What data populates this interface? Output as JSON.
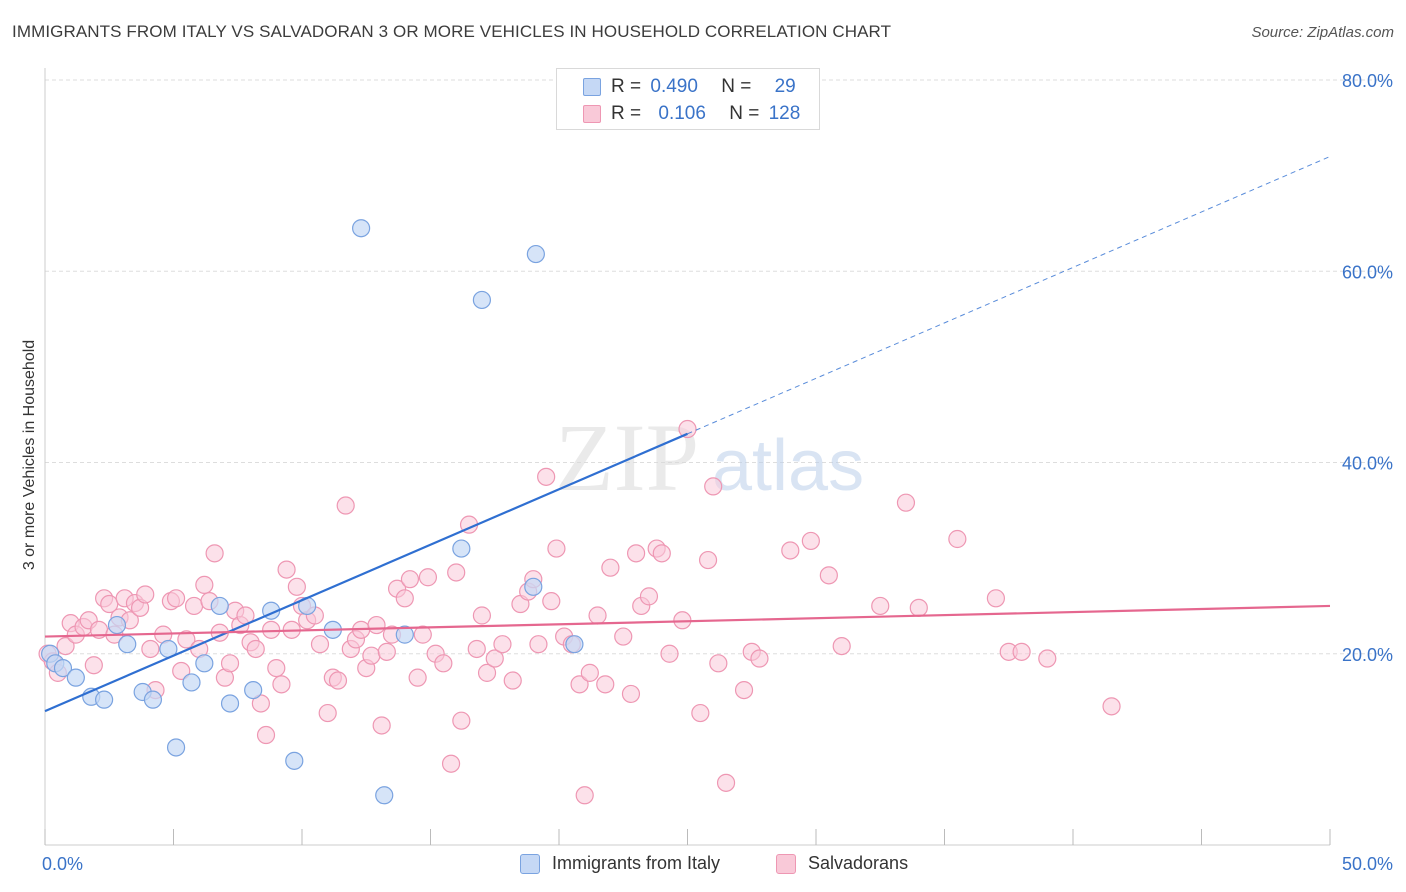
{
  "title": "IMMIGRANTS FROM ITALY VS SALVADORAN 3 OR MORE VEHICLES IN HOUSEHOLD CORRELATION CHART",
  "source": "Source: ZipAtlas.com",
  "watermark": {
    "zip": "ZIP",
    "atlas": "atlas"
  },
  "stats": [
    {
      "r_label": "R =",
      "r_value": "0.490",
      "n_label": "N =",
      "n_value": "29"
    },
    {
      "r_label": "R =",
      "r_value": "0.106",
      "n_label": "N =",
      "n_value": "128"
    }
  ],
  "colors": {
    "italy_fill": "#c5d8f5",
    "italy_stroke": "#7aa3e0",
    "italy_line": "#2f6fd1",
    "salv_fill": "#f9c9d8",
    "salv_stroke": "#ee97b3",
    "salv_line": "#e5678f",
    "axis_label": "#3a73c8",
    "grid": "#dddddd"
  },
  "chart_data": {
    "type": "scatter",
    "title": "IMMIGRANTS FROM ITALY VS SALVADORAN 3 OR MORE VEHICLES IN HOUSEHOLD CORRELATION CHART",
    "xlabel": "",
    "ylabel": "3 or more Vehicles in Household",
    "xlim": [
      0,
      50
    ],
    "ylim": [
      0,
      80
    ],
    "x_tick_labels": [
      "0.0%",
      "50.0%"
    ],
    "y_ticks": [
      20,
      40,
      60,
      80
    ],
    "y_tick_labels": [
      "20.0%",
      "40.0%",
      "60.0%",
      "80.0%"
    ],
    "grid": true,
    "legend_position": "bottom",
    "series": [
      {
        "name": "Immigrants from Italy",
        "trend": {
          "x": [
            0,
            25
          ],
          "y": [
            14.0,
            43.0
          ],
          "dashed_to": [
            50,
            72.0
          ]
        },
        "points": [
          [
            0.2,
            20.0
          ],
          [
            0.4,
            19.0
          ],
          [
            0.7,
            18.5
          ],
          [
            1.2,
            17.5
          ],
          [
            1.8,
            15.5
          ],
          [
            2.3,
            15.2
          ],
          [
            2.8,
            23.0
          ],
          [
            3.2,
            21.0
          ],
          [
            3.8,
            16.0
          ],
          [
            4.2,
            15.2
          ],
          [
            4.8,
            20.5
          ],
          [
            5.1,
            10.2
          ],
          [
            5.7,
            17.0
          ],
          [
            6.2,
            19.0
          ],
          [
            6.8,
            25.0
          ],
          [
            7.2,
            14.8
          ],
          [
            8.1,
            16.2
          ],
          [
            8.8,
            24.5
          ],
          [
            9.7,
            8.8
          ],
          [
            10.2,
            25.0
          ],
          [
            11.2,
            22.5
          ],
          [
            12.3,
            64.5
          ],
          [
            13.2,
            5.2
          ],
          [
            14.0,
            22.0
          ],
          [
            16.2,
            31.0
          ],
          [
            17.0,
            57.0
          ],
          [
            19.0,
            27.0
          ],
          [
            19.1,
            61.8
          ],
          [
            20.6,
            21.0
          ]
        ]
      },
      {
        "name": "Salvadorans",
        "trend": {
          "x": [
            0,
            50
          ],
          "y": [
            21.8,
            25.0
          ]
        },
        "points": [
          [
            0.1,
            20.0
          ],
          [
            0.3,
            19.2
          ],
          [
            0.5,
            18.0
          ],
          [
            0.8,
            20.8
          ],
          [
            1.0,
            23.2
          ],
          [
            1.2,
            22.0
          ],
          [
            1.5,
            22.8
          ],
          [
            1.7,
            23.5
          ],
          [
            1.9,
            18.8
          ],
          [
            2.1,
            22.5
          ],
          [
            2.3,
            25.8
          ],
          [
            2.5,
            25.2
          ],
          [
            2.7,
            22.0
          ],
          [
            2.9,
            23.8
          ],
          [
            3.1,
            25.8
          ],
          [
            3.3,
            23.5
          ],
          [
            3.5,
            25.3
          ],
          [
            3.7,
            24.8
          ],
          [
            3.9,
            26.2
          ],
          [
            4.1,
            20.5
          ],
          [
            4.3,
            16.2
          ],
          [
            4.6,
            22.0
          ],
          [
            4.9,
            25.5
          ],
          [
            5.1,
            25.8
          ],
          [
            5.3,
            18.2
          ],
          [
            5.5,
            21.5
          ],
          [
            5.8,
            25.0
          ],
          [
            6.0,
            20.5
          ],
          [
            6.2,
            27.2
          ],
          [
            6.4,
            25.5
          ],
          [
            6.6,
            30.5
          ],
          [
            6.8,
            22.2
          ],
          [
            7.0,
            17.5
          ],
          [
            7.2,
            19.0
          ],
          [
            7.4,
            24.5
          ],
          [
            7.6,
            23.0
          ],
          [
            7.8,
            24.0
          ],
          [
            8.0,
            21.2
          ],
          [
            8.2,
            20.5
          ],
          [
            8.4,
            14.8
          ],
          [
            8.6,
            11.5
          ],
          [
            8.8,
            22.5
          ],
          [
            9.0,
            18.5
          ],
          [
            9.2,
            16.8
          ],
          [
            9.4,
            28.8
          ],
          [
            9.6,
            22.5
          ],
          [
            9.8,
            27.0
          ],
          [
            10.0,
            25.0
          ],
          [
            10.2,
            23.5
          ],
          [
            10.5,
            24.0
          ],
          [
            10.7,
            21.0
          ],
          [
            11.0,
            13.8
          ],
          [
            11.2,
            17.5
          ],
          [
            11.4,
            17.2
          ],
          [
            11.7,
            35.5
          ],
          [
            11.9,
            20.5
          ],
          [
            12.1,
            21.5
          ],
          [
            12.3,
            22.5
          ],
          [
            12.5,
            18.5
          ],
          [
            12.7,
            19.8
          ],
          [
            12.9,
            23.0
          ],
          [
            13.1,
            12.5
          ],
          [
            13.3,
            20.2
          ],
          [
            13.5,
            22.0
          ],
          [
            13.7,
            26.8
          ],
          [
            14.0,
            25.8
          ],
          [
            14.2,
            27.8
          ],
          [
            14.5,
            17.5
          ],
          [
            14.7,
            22.0
          ],
          [
            14.9,
            28.0
          ],
          [
            15.2,
            20.0
          ],
          [
            15.5,
            19.0
          ],
          [
            15.8,
            8.5
          ],
          [
            16.0,
            28.5
          ],
          [
            16.2,
            13.0
          ],
          [
            16.5,
            33.5
          ],
          [
            16.8,
            20.5
          ],
          [
            17.0,
            24.0
          ],
          [
            17.2,
            18.0
          ],
          [
            17.5,
            19.5
          ],
          [
            17.8,
            21.0
          ],
          [
            18.2,
            17.2
          ],
          [
            18.5,
            25.2
          ],
          [
            18.8,
            26.5
          ],
          [
            19.0,
            27.8
          ],
          [
            19.2,
            21.0
          ],
          [
            19.5,
            38.5
          ],
          [
            19.7,
            25.5
          ],
          [
            19.9,
            31.0
          ],
          [
            20.2,
            21.8
          ],
          [
            20.5,
            21.0
          ],
          [
            20.8,
            16.8
          ],
          [
            21.0,
            5.2
          ],
          [
            21.2,
            18.0
          ],
          [
            21.5,
            24.0
          ],
          [
            21.8,
            16.8
          ],
          [
            22.0,
            29.0
          ],
          [
            22.5,
            21.8
          ],
          [
            22.8,
            15.8
          ],
          [
            23.0,
            30.5
          ],
          [
            23.2,
            25.0
          ],
          [
            23.5,
            26.0
          ],
          [
            23.8,
            31.0
          ],
          [
            24.0,
            30.5
          ],
          [
            24.3,
            20.0
          ],
          [
            24.8,
            23.5
          ],
          [
            25.0,
            43.5
          ],
          [
            25.5,
            13.8
          ],
          [
            25.8,
            29.8
          ],
          [
            26.0,
            37.5
          ],
          [
            26.2,
            19.0
          ],
          [
            26.5,
            6.5
          ],
          [
            27.2,
            16.2
          ],
          [
            27.5,
            20.2
          ],
          [
            27.8,
            19.5
          ],
          [
            29.0,
            30.8
          ],
          [
            29.8,
            31.8
          ],
          [
            30.5,
            28.2
          ],
          [
            31.0,
            20.8
          ],
          [
            32.5,
            25.0
          ],
          [
            33.5,
            35.8
          ],
          [
            34.0,
            24.8
          ],
          [
            35.5,
            32.0
          ],
          [
            37.0,
            25.8
          ],
          [
            37.5,
            20.2
          ],
          [
            38.0,
            20.2
          ],
          [
            39.0,
            19.5
          ],
          [
            41.5,
            14.5
          ]
        ]
      }
    ]
  },
  "legend": [
    "Immigrants from Italy",
    "Salvadorans"
  ]
}
